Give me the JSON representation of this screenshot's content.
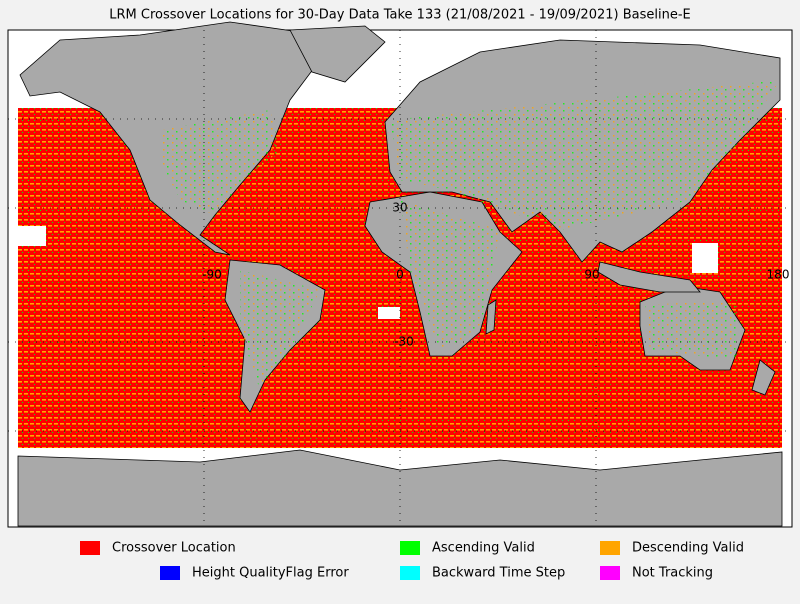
{
  "header": {
    "title": "LRM Crossover Locations for 30-Day Data Take 133 (21/08/2021 - 19/09/2021) Baseline-E"
  },
  "map": {
    "grid_labels": [
      "30",
      "-30",
      "-90",
      "0",
      "90",
      "180"
    ]
  },
  "legend": {
    "items": [
      {
        "label": "Crossover Location",
        "color": "#ff0000"
      },
      {
        "label": "Ascending Valid",
        "color": "#00ff00"
      },
      {
        "label": "Descending Valid",
        "color": "#ffa500"
      },
      {
        "label": "Height QualityFlag Error",
        "color": "#0000ff"
      },
      {
        "label": "Backward Time Step",
        "color": "#00ffff"
      },
      {
        "label": "Not Tracking",
        "color": "#ff00ff"
      }
    ]
  }
}
